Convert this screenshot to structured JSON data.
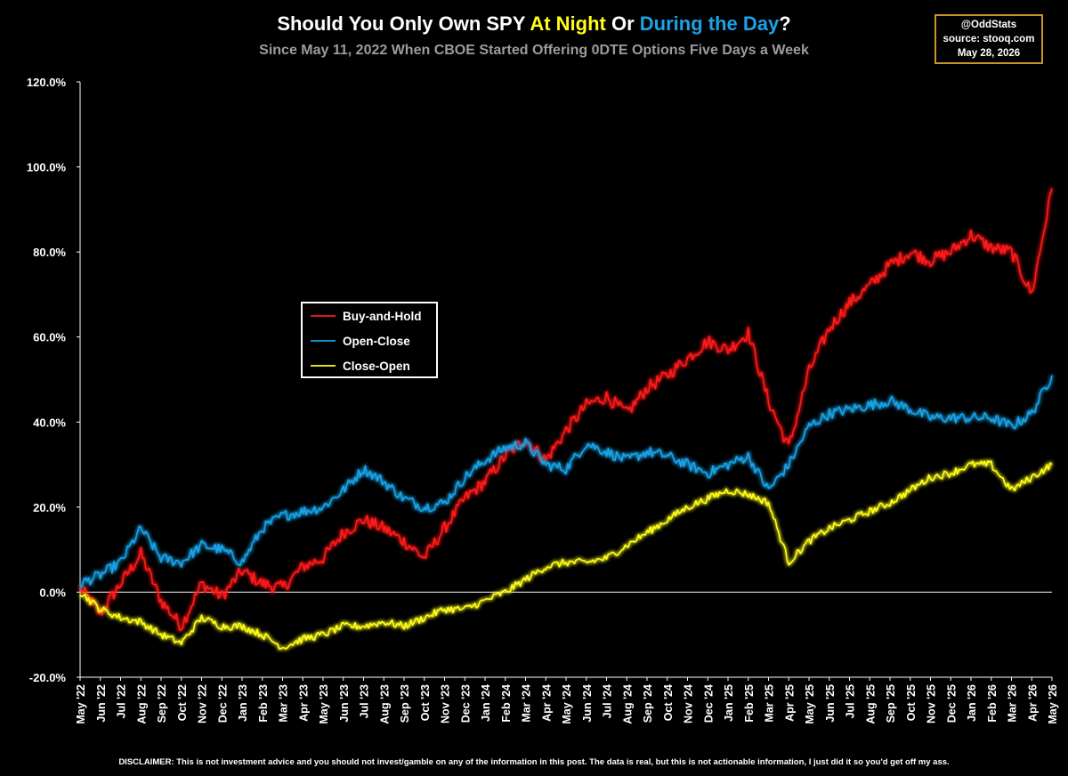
{
  "header": {
    "title_parts": [
      {
        "text": "Should You Only Own SPY ",
        "color": "#ffffff"
      },
      {
        "text": "At Night",
        "color": "#ffff1a"
      },
      {
        "text": " Or ",
        "color": "#ffffff"
      },
      {
        "text": "During the Day",
        "color": "#1aa3e8"
      },
      {
        "text": "?",
        "color": "#ffffff"
      }
    ],
    "subtitle": "Since May 11, 2022 When CBOE Started Offering 0DTE Options Five Days a Week"
  },
  "credit": {
    "handle": "@OddStats",
    "source": "source: stooq.com",
    "date": "May 28, 2026"
  },
  "disclaimer": "DISCLAIMER: This is not investment advice and you should not invest/gamble on any of the information in this post.   The data is real, but this is not actionable information, I just did it so you'd get off my ass.",
  "chart_data": {
    "type": "line",
    "title": "Should You Only Own SPY At Night Or During the Day?",
    "subtitle": "Since May 11, 2022 When CBOE Started Offering 0DTE Options Five Days a Week",
    "xlabel": "",
    "ylabel": "",
    "ylim": [
      -20,
      120
    ],
    "yticks": [
      -20,
      0,
      20,
      40,
      60,
      80,
      100,
      120
    ],
    "ytick_labels": [
      "-20.0%",
      "0.0%",
      "20.0%",
      "40.0%",
      "60.0%",
      "80.0%",
      "100.0%",
      "120.0%"
    ],
    "x_tick_labels": [
      "May '22",
      "Jun '22",
      "Jul '22",
      "Aug '22",
      "Sep '22",
      "Oct '22",
      "Nov '22",
      "Dec '22",
      "Jan '23",
      "Feb '23",
      "Mar '23",
      "Apr '23",
      "May '23",
      "Jun '23",
      "Jul '23",
      "Aug '23",
      "Sep '23",
      "Oct '23",
      "Nov '23",
      "Dec '23",
      "Jan '24",
      "Feb '24",
      "Mar '24",
      "Apr '24",
      "May '24",
      "Jun '24",
      "Jul '24",
      "Aug '24",
      "Sep '24",
      "Oct '24",
      "Nov '24",
      "Dec '24",
      "Jan '25",
      "Feb '25",
      "Mar '25",
      "Apr '25",
      "May '25",
      "Jun '25",
      "Jul '25",
      "Aug '25",
      "Sep '25",
      "Oct '25",
      "Nov '25",
      "Dec '25",
      "Jan '26",
      "Feb '26",
      "Mar '26",
      "Apr '26",
      "May '26"
    ],
    "grid": false,
    "zero_line": true,
    "legend_position": "center-left",
    "x": [
      "2022-05",
      "2022-06",
      "2022-07",
      "2022-08",
      "2022-09",
      "2022-10",
      "2022-11",
      "2022-12",
      "2023-01",
      "2023-02",
      "2023-03",
      "2023-04",
      "2023-05",
      "2023-06",
      "2023-07",
      "2023-08",
      "2023-09",
      "2023-10",
      "2023-11",
      "2023-12",
      "2024-01",
      "2024-02",
      "2024-03",
      "2024-04",
      "2024-05",
      "2024-06",
      "2024-07",
      "2024-08",
      "2024-09",
      "2024-10",
      "2024-11",
      "2024-12",
      "2025-01",
      "2025-02",
      "2025-03",
      "2025-04",
      "2025-05",
      "2025-06",
      "2025-07",
      "2025-08",
      "2025-09",
      "2025-10",
      "2025-11",
      "2025-12",
      "2026-01",
      "2026-02",
      "2026-03",
      "2026-04",
      "2026-05"
    ],
    "series": [
      {
        "name": "Buy-and-Hold",
        "color": "#ff1a1a",
        "values": [
          1,
          -5,
          2,
          9,
          -2,
          -8,
          2,
          -1,
          5,
          2,
          1,
          6,
          8,
          14,
          17,
          15,
          12,
          8,
          15,
          22,
          26,
          32,
          36,
          31,
          38,
          44,
          46,
          42,
          48,
          51,
          55,
          59,
          57,
          61,
          45,
          34,
          52,
          62,
          68,
          72,
          77,
          80,
          78,
          80,
          84,
          81,
          80,
          70,
          95
        ]
      },
      {
        "name": "Open-Close",
        "color": "#1aa3e8",
        "values": [
          2,
          4,
          7,
          15,
          8,
          7,
          11,
          10,
          7,
          15,
          18,
          19,
          20,
          24,
          29,
          26,
          22,
          20,
          21,
          27,
          31,
          34,
          35,
          30,
          29,
          35,
          33,
          31,
          33,
          32,
          30,
          28,
          30,
          32,
          24,
          30,
          39,
          42,
          43,
          44,
          45,
          43,
          41,
          41,
          41,
          41,
          39,
          42,
          51
        ]
      },
      {
        "name": "Close-Open",
        "color": "#ffff1a",
        "values": [
          0,
          -4,
          -6,
          -7,
          -10,
          -12,
          -6,
          -8,
          -8,
          -10,
          -13,
          -11,
          -10,
          -8,
          -8,
          -7,
          -8,
          -6,
          -4,
          -4,
          -2,
          0,
          3,
          6,
          7,
          7,
          8,
          11,
          14,
          17,
          20,
          22,
          24,
          23,
          21,
          7,
          12,
          15,
          17,
          19,
          21,
          24,
          27,
          28,
          30,
          30,
          24,
          27,
          30
        ]
      }
    ]
  }
}
